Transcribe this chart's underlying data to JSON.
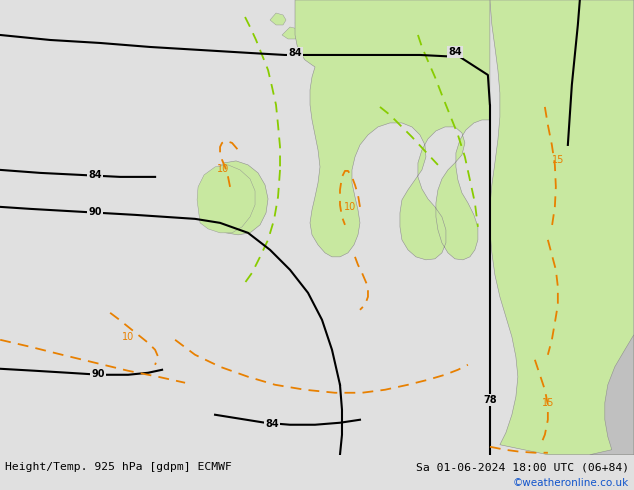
{
  "title_left": "Height/Temp. 925 hPa [gdpm] ECMWF",
  "title_right": "Sa 01-06-2024 18:00 UTC (06+84)",
  "copyright": "©weatheronline.co.uk",
  "bg_ocean": "#e0e0e0",
  "land_green": "#c8e8a0",
  "land_gray": "#c0c0c0",
  "black_line": "#000000",
  "orange_line": "#e88000",
  "green_line": "#88cc00",
  "copyright_color": "#1155cc",
  "bottom_bg": "#e0e0e0"
}
